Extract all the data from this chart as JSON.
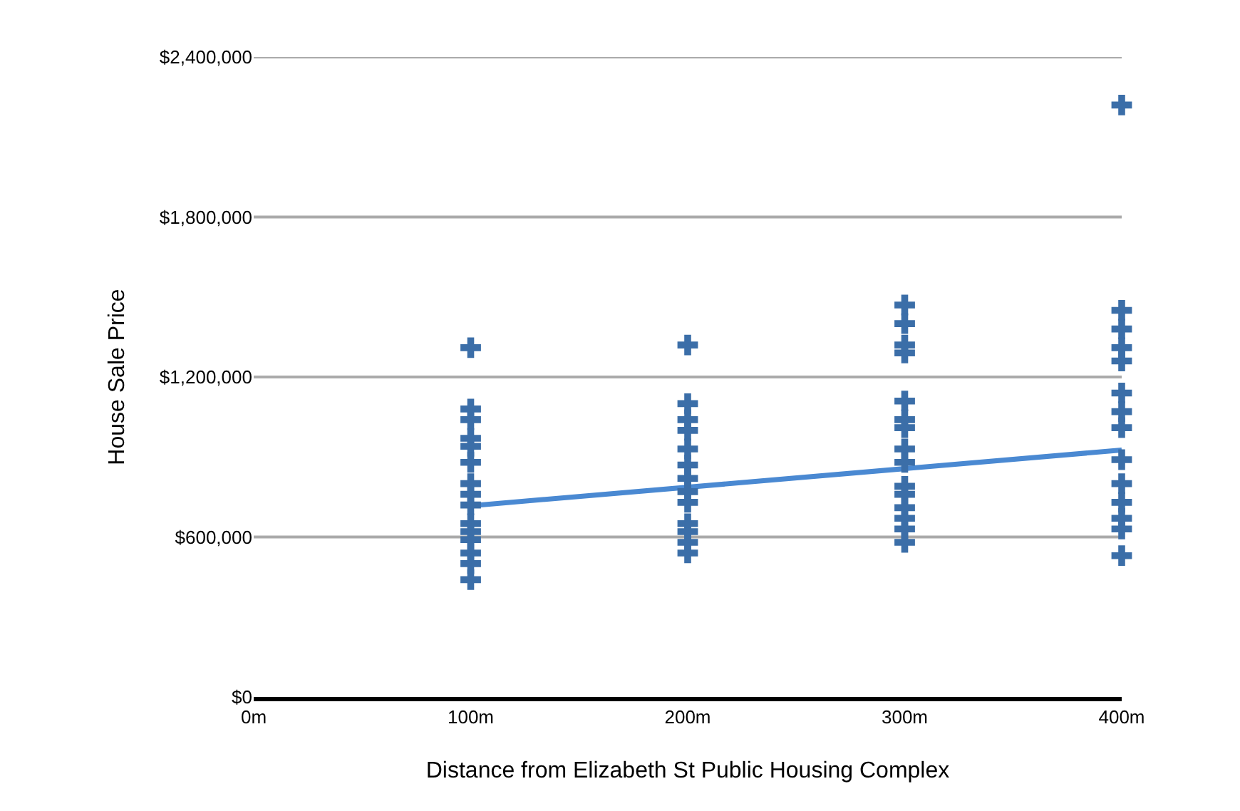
{
  "chart_data": {
    "type": "scatter",
    "xlabel": "Distance from Elizabeth St Public Housing Complex",
    "ylabel": "House Sale Price",
    "xlim": [
      0,
      400
    ],
    "ylim": [
      0,
      2400000
    ],
    "xticks": [
      {
        "value": 0,
        "label": "0m"
      },
      {
        "value": 100,
        "label": "100m"
      },
      {
        "value": 200,
        "label": "200m"
      },
      {
        "value": 300,
        "label": "300m"
      },
      {
        "value": 400,
        "label": "400m"
      }
    ],
    "yticks": [
      {
        "value": 0,
        "label": "$0"
      },
      {
        "value": 600000,
        "label": "$600,000"
      },
      {
        "value": 1200000,
        "label": "$1,200,000"
      },
      {
        "value": 1800000,
        "label": "$1,800,000"
      },
      {
        "value": 2400000,
        "label": "$2,400,000"
      }
    ],
    "grid": "y",
    "marker": "cross",
    "series": [
      {
        "color": "#3b6ea8",
        "x": [
          100,
          100,
          100,
          100,
          100,
          100,
          100,
          100,
          100,
          100,
          100,
          100,
          100,
          100,
          100,
          200,
          200,
          200,
          200,
          200,
          200,
          200,
          200,
          200,
          200,
          200,
          200,
          200,
          300,
          300,
          300,
          300,
          300,
          300,
          300,
          300,
          300,
          300,
          300,
          300,
          300,
          300,
          300,
          400,
          400,
          400,
          400,
          400,
          400,
          400,
          400,
          400,
          400,
          400,
          400,
          400,
          400
        ],
        "values": [
          1310000,
          1080000,
          1040000,
          970000,
          940000,
          880000,
          800000,
          760000,
          720000,
          650000,
          620000,
          590000,
          540000,
          500000,
          440000,
          1320000,
          1100000,
          1040000,
          1000000,
          930000,
          870000,
          820000,
          770000,
          730000,
          650000,
          620000,
          580000,
          540000,
          1470000,
          1400000,
          1320000,
          1290000,
          1110000,
          1040000,
          1010000,
          930000,
          880000,
          790000,
          760000,
          710000,
          670000,
          630000,
          580000,
          2220000,
          1450000,
          1380000,
          1310000,
          1260000,
          1140000,
          1070000,
          1010000,
          890000,
          800000,
          730000,
          670000,
          630000,
          530000
        ]
      },
      {
        "type": "line",
        "color": "#4a89d2",
        "marker": "none",
        "line_style": "solid",
        "x": [
          100,
          400
        ],
        "values": [
          717000,
          926000
        ]
      }
    ]
  }
}
